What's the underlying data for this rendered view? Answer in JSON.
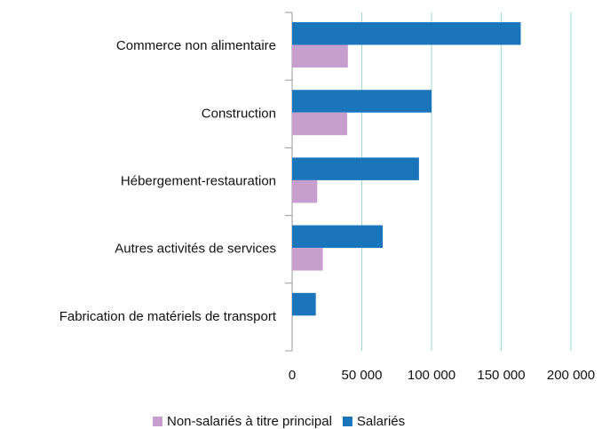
{
  "chart_data": {
    "type": "hbar",
    "categories": [
      "Commerce non alimentaire",
      "Construction",
      "Hébergement-restauration",
      "Autres activités de services",
      "Fabrication de matériels de transport"
    ],
    "series": [
      {
        "name": "Non-salariés à titre principal",
        "color": "#c79fce",
        "values": [
          40000,
          39500,
          18000,
          22000,
          0
        ]
      },
      {
        "name": "Salariés",
        "color": "#1b75bb",
        "values": [
          164000,
          100000,
          91000,
          65000,
          17000
        ]
      }
    ],
    "xlim": [
      0,
      200000
    ],
    "xticks": [
      0,
      {
        "value": 50000,
        "label": "50 000"
      },
      {
        "value": 100000,
        "label": "100 000"
      },
      {
        "value": 150000,
        "label": "150 000"
      },
      {
        "value": 200000,
        "label": "200 000"
      }
    ],
    "grid": true,
    "legend": "bottom"
  }
}
